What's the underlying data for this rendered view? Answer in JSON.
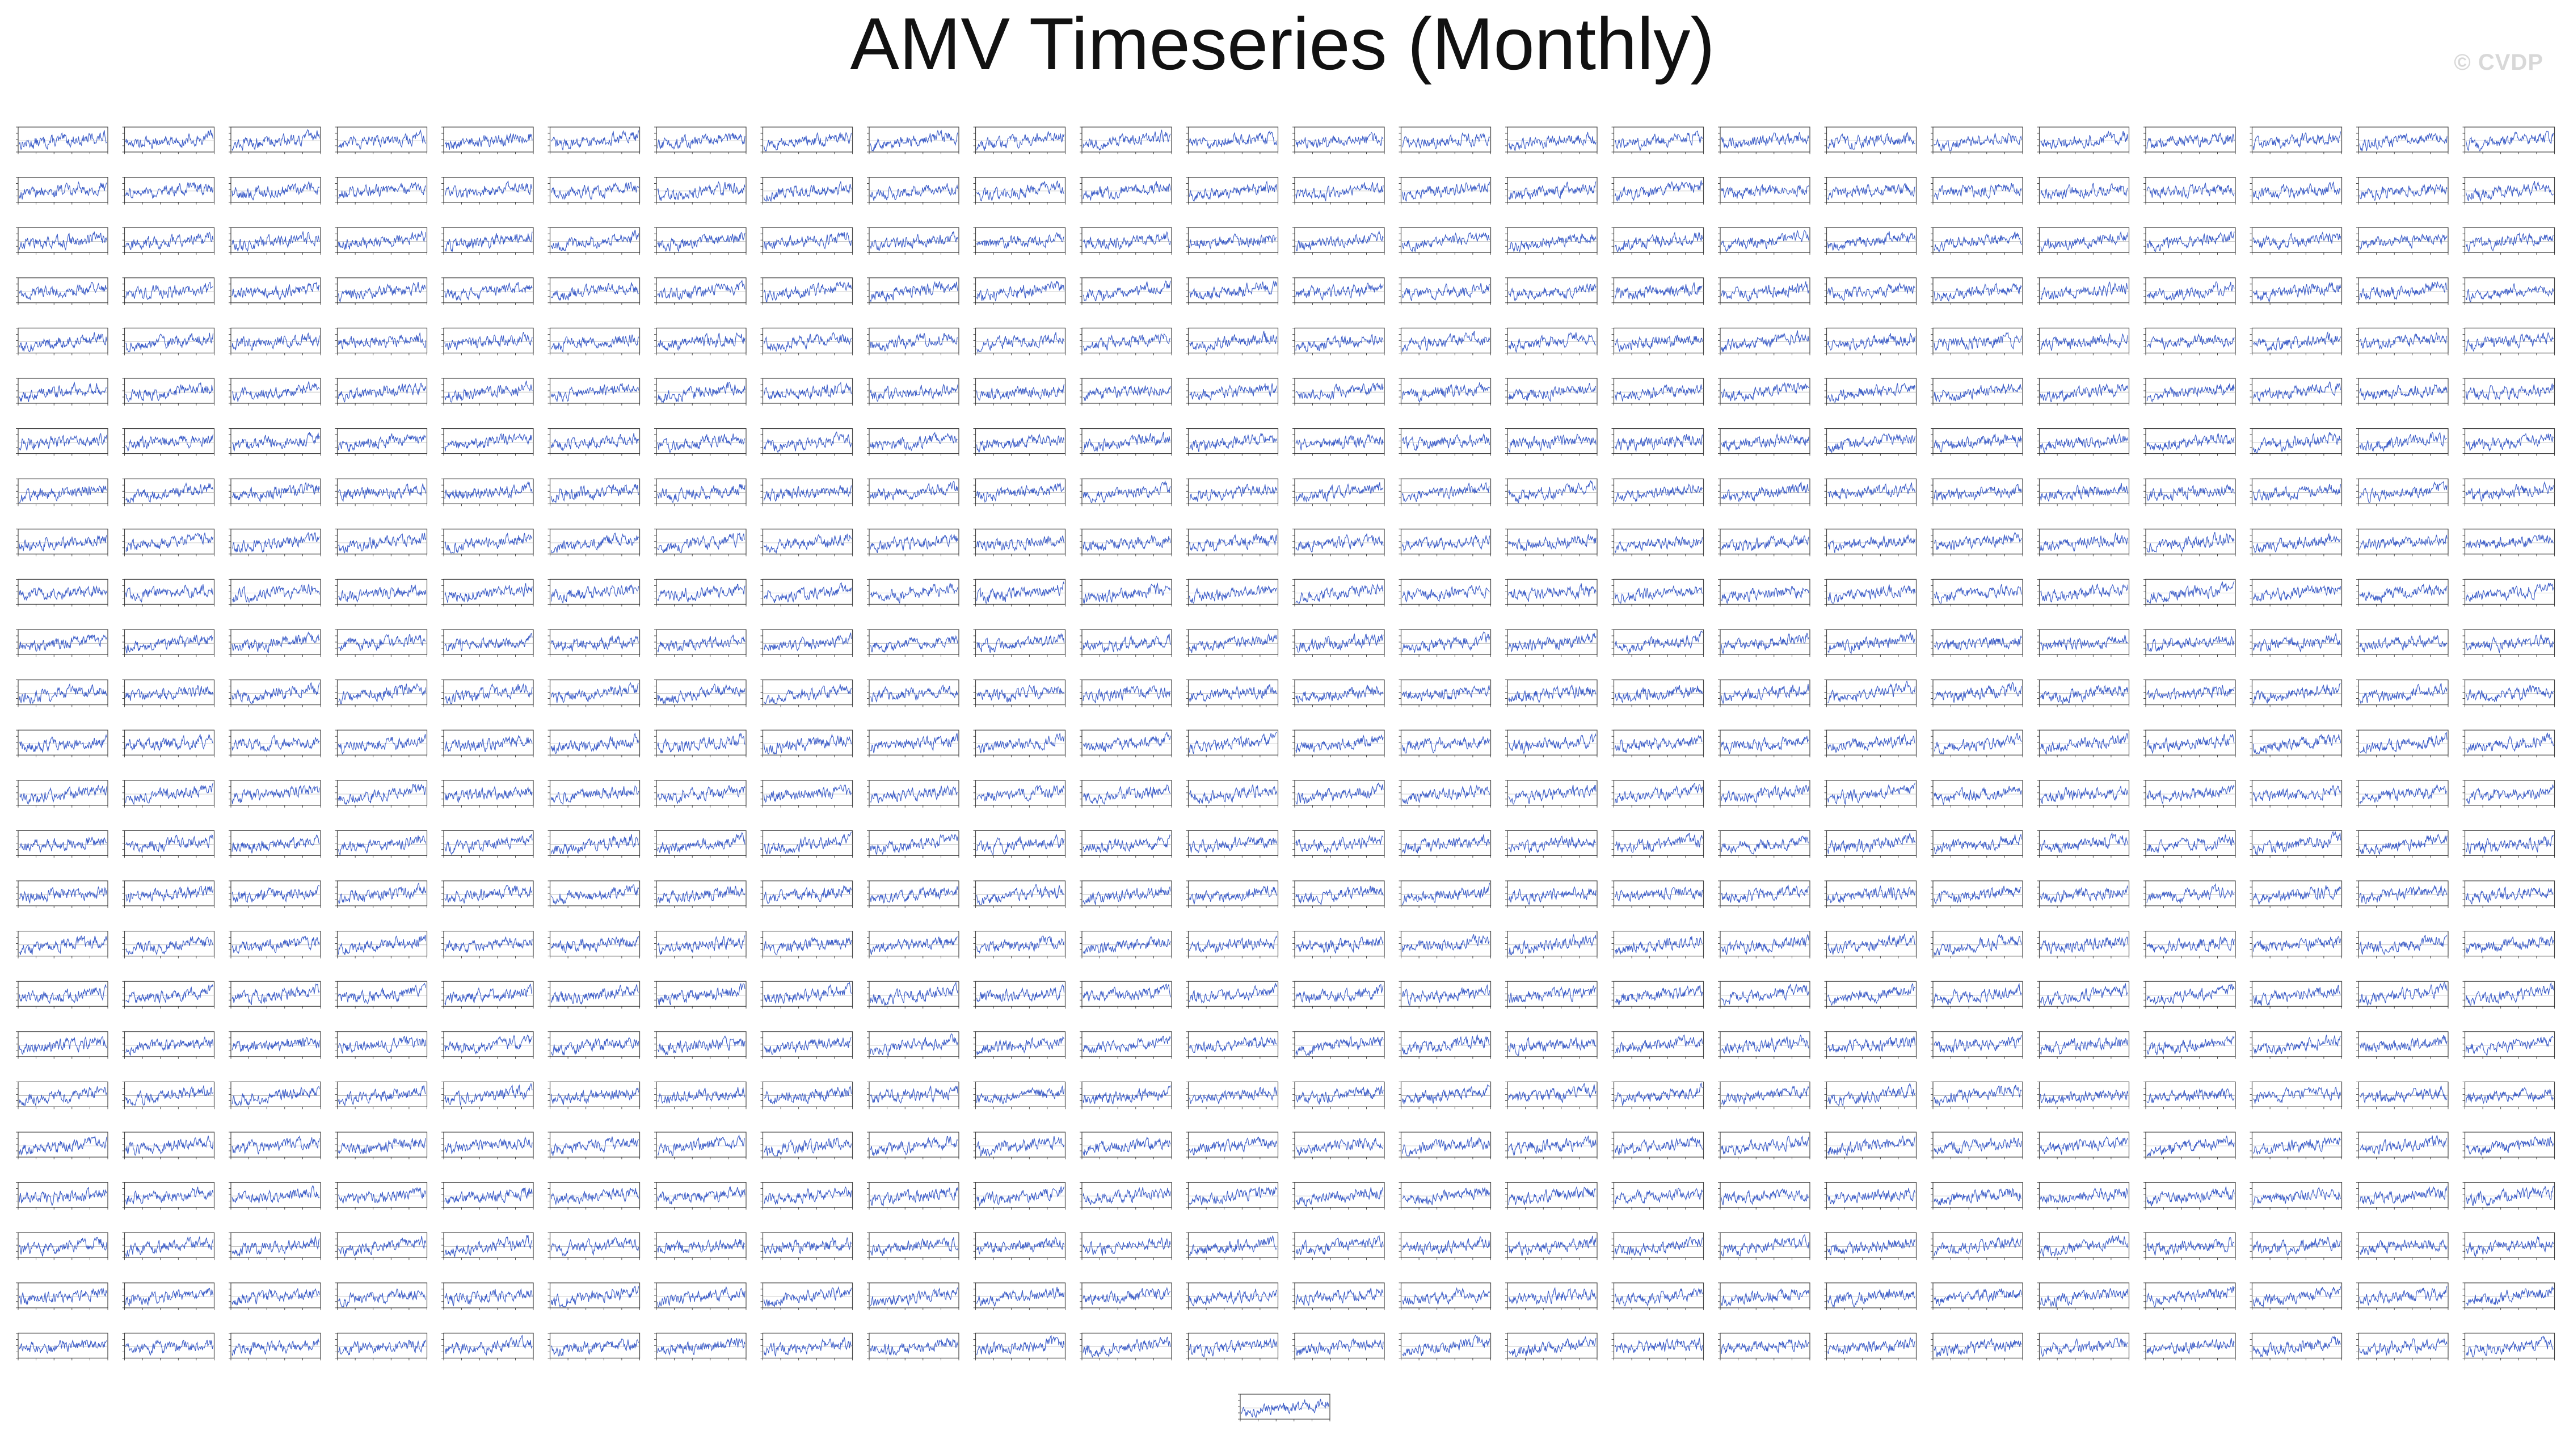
{
  "page": {
    "title": "AMV Timeseries (Monthly)",
    "watermark": "© CVDP"
  },
  "colors": {
    "line": "#3a5bc7",
    "axis": "#222222",
    "frame": "#444444"
  },
  "chart_data": {
    "type": "line",
    "panel_count": 601,
    "grid_columns": 24,
    "grid_rows_full": 25,
    "trailing_panels": 1,
    "per_panel": {
      "series_description_visible": false,
      "trend": "upward",
      "noise": "high-frequency monthly variability"
    }
  }
}
